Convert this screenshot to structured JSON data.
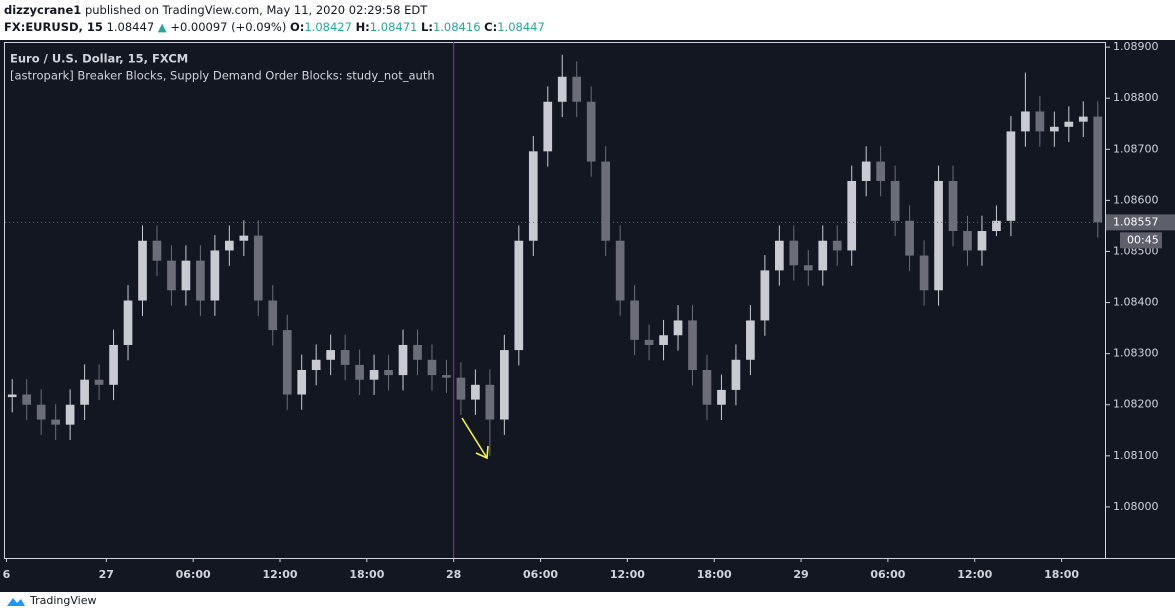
{
  "header": {
    "author": "dizzycrane1",
    "published": "published on TradingView.com, May 11, 2020 02:29:58 EDT",
    "symbol": "FX:EURUSD, 15",
    "price": "1.08447",
    "change": "+0.00097 (+0.09%)",
    "ohlc": [
      {
        "label": "O:",
        "value": "1.08427"
      },
      {
        "label": "H:",
        "value": "1.08471"
      },
      {
        "label": "L:",
        "value": "1.08416"
      },
      {
        "label": "C:",
        "value": "1.08447"
      }
    ]
  },
  "footer": {
    "brand": "TradingView"
  },
  "chart_data": {
    "type": "candlestick",
    "title": "Euro / U.S. Dollar, 15, FXCM",
    "subtitle": "[astropark] Breaker Blocks, Supply Demand Order Blocks: study_not_auth",
    "up_color": "#c9cbd2",
    "down_color": "#6b6e79",
    "x": [
      -6.5,
      -5.5,
      -4.5,
      -3.5,
      -2.5,
      -1.5,
      -0.5,
      0.5,
      1.5,
      2.5,
      3.5,
      4.5,
      5.5,
      6.5,
      7.5,
      8.5,
      9.5,
      10.5,
      11.5,
      12.5,
      13.5,
      14.5,
      15.5,
      16.5,
      17.5,
      18.5,
      19.5,
      20.5,
      21.5,
      22.5,
      23.5,
      24.5,
      25.5,
      26.5,
      27.5,
      28.5,
      29.5,
      30.5,
      31.5,
      32.5,
      33.5,
      34.5,
      35.5,
      36.5,
      37.5,
      38.5,
      39.5,
      40.5,
      41.5,
      42.5,
      43.5,
      44.5,
      45.5,
      46.5,
      47.5,
      48.5,
      49.5,
      50.5,
      51.5,
      52.5,
      53.5,
      54.5,
      55.5,
      56.5,
      57.5,
      58.5,
      59.5,
      60.5,
      61.5,
      62.5,
      63.5,
      64.5,
      65.5,
      66.5,
      67.5,
      68.5
    ],
    "open": [
      1.08215,
      1.0822,
      1.082,
      1.08171,
      1.08161,
      1.082,
      1.08249,
      1.08239,
      1.08317,
      1.08404,
      1.08521,
      1.08482,
      1.08424,
      1.08482,
      1.08404,
      1.08502,
      1.08521,
      1.08531,
      1.08404,
      1.08346,
      1.0822,
      1.08268,
      1.08288,
      1.08307,
      1.08278,
      1.08249,
      1.08268,
      1.08258,
      1.08317,
      1.08288,
      1.08258,
      1.08253,
      1.0821,
      1.08239,
      1.08171,
      1.08307,
      1.08521,
      1.08696,
      1.08793,
      1.08842,
      1.08793,
      1.08676,
      1.08521,
      1.08404,
      1.08327,
      1.08317,
      1.08336,
      1.08365,
      1.08268,
      1.082,
      1.08229,
      1.08288,
      1.08365,
      1.08463,
      1.08521,
      1.08473,
      1.08463,
      1.08521,
      1.08502,
      1.08638,
      1.08676,
      1.08638,
      1.0856,
      1.08492,
      1.08424,
      1.08638,
      1.0854,
      1.08502,
      1.0854,
      1.0856,
      1.08735,
      1.08774,
      1.08735,
      1.08744,
      1.08754,
      1.08764
    ],
    "high": [
      1.0825,
      1.0825,
      1.0823,
      1.08201,
      1.0823,
      1.08279,
      1.08279,
      1.08347,
      1.08434,
      1.08551,
      1.08551,
      1.08512,
      1.08512,
      1.08512,
      1.08532,
      1.08551,
      1.08561,
      1.08561,
      1.08434,
      1.08376,
      1.08298,
      1.08318,
      1.08337,
      1.08337,
      1.08308,
      1.08298,
      1.08298,
      1.08347,
      1.08347,
      1.08318,
      1.08288,
      1.08283,
      1.08269,
      1.08269,
      1.08337,
      1.08551,
      1.08726,
      1.08823,
      1.08885,
      1.08872,
      1.08823,
      1.08706,
      1.08551,
      1.08434,
      1.08357,
      1.08366,
      1.08395,
      1.08395,
      1.08298,
      1.08259,
      1.08318,
      1.08395,
      1.08493,
      1.08551,
      1.08551,
      1.08503,
      1.08551,
      1.08551,
      1.08668,
      1.08706,
      1.08706,
      1.08668,
      1.0859,
      1.08522,
      1.08668,
      1.08668,
      1.0857,
      1.0857,
      1.0859,
      1.08765,
      1.0885,
      1.08804,
      1.08774,
      1.08784,
      1.08794,
      1.08794
    ],
    "low": [
      1.08185,
      1.0817,
      1.08141,
      1.08131,
      1.08131,
      1.0817,
      1.08209,
      1.08209,
      1.08287,
      1.08374,
      1.08452,
      1.08394,
      1.08394,
      1.08374,
      1.08374,
      1.08472,
      1.08491,
      1.08374,
      1.08316,
      1.0819,
      1.0819,
      1.08238,
      1.08258,
      1.08248,
      1.08219,
      1.08219,
      1.08228,
      1.08228,
      1.08258,
      1.08228,
      1.08223,
      1.0818,
      1.0818,
      1.081,
      1.08141,
      1.08277,
      1.08491,
      1.08666,
      1.08763,
      1.08763,
      1.08646,
      1.08491,
      1.08374,
      1.08297,
      1.08287,
      1.08287,
      1.08306,
      1.08238,
      1.0817,
      1.0817,
      1.08199,
      1.08258,
      1.08335,
      1.08433,
      1.08443,
      1.08433,
      1.08433,
      1.08472,
      1.08472,
      1.08608,
      1.08608,
      1.0853,
      1.08462,
      1.08394,
      1.08394,
      1.0851,
      1.08472,
      1.08472,
      1.0853,
      1.0853,
      1.08705,
      1.08705,
      1.08705,
      1.08714,
      1.08724,
      1.08527
    ],
    "close": [
      1.0822,
      1.082,
      1.08171,
      1.08161,
      1.082,
      1.08249,
      1.08239,
      1.08317,
      1.08404,
      1.08521,
      1.08482,
      1.08424,
      1.08482,
      1.08404,
      1.08502,
      1.08521,
      1.08531,
      1.08404,
      1.08346,
      1.0822,
      1.08268,
      1.08288,
      1.08307,
      1.08278,
      1.08249,
      1.08268,
      1.08258,
      1.08317,
      1.08288,
      1.08258,
      1.08253,
      1.0821,
      1.08239,
      1.08171,
      1.08307,
      1.08521,
      1.08696,
      1.08793,
      1.08842,
      1.08793,
      1.08676,
      1.08521,
      1.08404,
      1.08327,
      1.08317,
      1.08336,
      1.08365,
      1.08268,
      1.082,
      1.08229,
      1.08288,
      1.08365,
      1.08463,
      1.08521,
      1.08473,
      1.08463,
      1.08521,
      1.08502,
      1.08638,
      1.08676,
      1.08638,
      1.0856,
      1.08492,
      1.08424,
      1.08638,
      1.0854,
      1.08502,
      1.0854,
      1.0856,
      1.08735,
      1.08774,
      1.08735,
      1.08744,
      1.08754,
      1.08764,
      1.08557
    ],
    "xlim": [
      -7,
      69
    ],
    "xticks": [
      {
        "value": -6.9,
        "label": "6"
      },
      {
        "value": 0,
        "label": "27"
      },
      {
        "value": 6,
        "label": "06:00"
      },
      {
        "value": 12,
        "label": "12:00"
      },
      {
        "value": 18,
        "label": "18:00"
      },
      {
        "value": 24,
        "label": "28"
      },
      {
        "value": 30,
        "label": "06:00"
      },
      {
        "value": 36,
        "label": "12:00"
      },
      {
        "value": 42,
        "label": "18:00"
      },
      {
        "value": 48,
        "label": "29"
      },
      {
        "value": 54,
        "label": "06:00"
      },
      {
        "value": 60,
        "label": "12:00"
      },
      {
        "value": 66,
        "label": "18:00"
      }
    ],
    "ylim": [
      1.079,
      1.0891
    ],
    "yticks": [
      {
        "value": 1.08,
        "label": "1.08000"
      },
      {
        "value": 1.081,
        "label": "1.08100"
      },
      {
        "value": 1.082,
        "label": "1.08200"
      },
      {
        "value": 1.083,
        "label": "1.08300"
      },
      {
        "value": 1.084,
        "label": "1.08400"
      },
      {
        "value": 1.085,
        "label": "1.08500"
      },
      {
        "value": 1.086,
        "label": "1.08600"
      },
      {
        "value": 1.087,
        "label": "1.08700"
      },
      {
        "value": 1.088,
        "label": "1.08800"
      },
      {
        "value": 1.089,
        "label": "1.08900"
      }
    ],
    "vertical_line": {
      "x": 24,
      "color": "#9c27b0"
    },
    "last_price": {
      "value": 1.08557,
      "label": "1.08557",
      "countdown": "00:45"
    }
  }
}
